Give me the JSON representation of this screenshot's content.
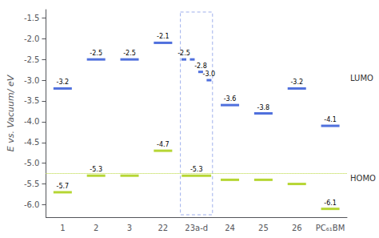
{
  "chart_data": {
    "type": "level",
    "ylabel": "E vs. Vacuum/ eV",
    "categories": [
      "1",
      "2",
      "3",
      "22",
      "23a-d",
      "24",
      "25",
      "26",
      "PC₆₁BM"
    ],
    "series": [
      {
        "name": "LUMO",
        "values": [
          -3.2,
          -2.5,
          -2.5,
          -2.1,
          [
            -2.5,
            -2.5,
            -2.8,
            -3.0
          ],
          -3.6,
          -3.8,
          -3.2,
          -4.1
        ],
        "value_labels": [
          "-3.2",
          "-2.5",
          "-2.5",
          "-2.1",
          [
            "-2.5",
            null,
            "-2.8",
            "-3.0"
          ],
          "-3.6",
          "-3.8",
          "-3.2",
          "-4.1"
        ]
      },
      {
        "name": "HOMO",
        "values": [
          -5.7,
          -5.3,
          -5.3,
          -4.7,
          -5.3,
          -5.4,
          -5.4,
          -5.5,
          -6.1
        ],
        "value_labels": [
          "-5.7",
          "-5.3",
          null,
          "-4.7",
          "-5.3",
          null,
          null,
          null,
          "-6.1"
        ]
      }
    ],
    "reference_line": -5.25,
    "data_labels": true,
    "ylim": [
      -6.3,
      -1.3
    ],
    "yticks": [
      {
        "value": -6.0,
        "label": "-6.0"
      },
      -5.5,
      {
        "value": -5.0,
        "label": "-5.0"
      },
      -4.5,
      {
        "value": -4.0,
        "label": "-4.0"
      },
      -3.5,
      {
        "value": -3.0,
        "label": "-3.0"
      },
      -2.5,
      {
        "value": -2.0,
        "label": "-2.0"
      },
      -1.5
    ],
    "grid": false
  }
}
